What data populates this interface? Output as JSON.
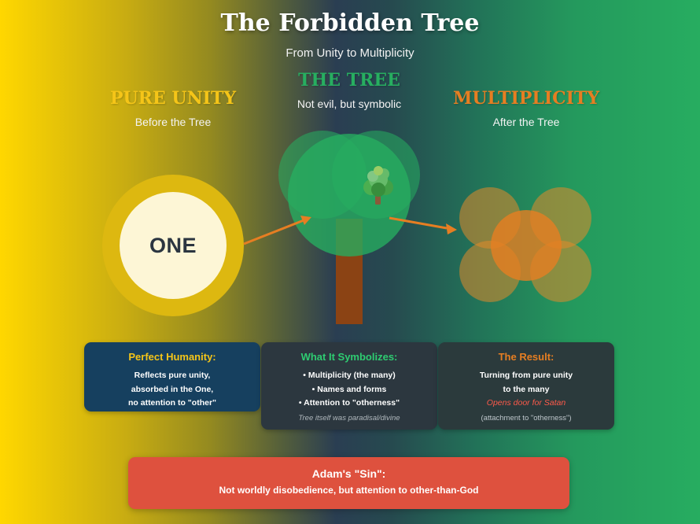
{
  "header": {
    "title": "The Forbidden Tree",
    "subtitle": "From Unity to Multiplicity"
  },
  "columns": {
    "unity": {
      "heading": "PURE UNITY",
      "sub": "Before the Tree",
      "color": "#f5c518"
    },
    "tree": {
      "heading": "THE TREE",
      "sub": "Not evil, but symbolic",
      "color": "#27ae60"
    },
    "multiplicity": {
      "heading": "MULTIPLICITY",
      "sub": "After the Tree",
      "color": "#e67e22"
    }
  },
  "unity_circle": {
    "label": "ONE"
  },
  "icons": {
    "tree": "deciduous-tree-icon"
  },
  "boxes": {
    "humanity": {
      "heading": "Perfect Humanity:",
      "heading_color": "#f5c518",
      "lines": [
        "Reflects pure unity,",
        "absorbed in the One,",
        "no attention to \"other\""
      ]
    },
    "symbolizes": {
      "heading": "What It Symbolizes:",
      "heading_color": "#2ecc71",
      "lines": [
        "• Multiplicity (the many)",
        "• Names and forms",
        "• Attention to \"otherness\""
      ],
      "note": "Tree itself was paradisal/divine"
    },
    "result": {
      "heading": "The Result:",
      "heading_color": "#e67e22",
      "lines": [
        "Turning from pure unity",
        "to the many"
      ],
      "highlight": "Opens door for Satan",
      "note": "(attachment to \"otherness\")"
    }
  },
  "sin": {
    "heading": "Adam's \"Sin\":",
    "text": "Not worldly disobedience, but attention to other-than-God"
  },
  "colors": {
    "arrow": "#e67e22",
    "trunk": "#8b4314",
    "sin_box": "#de513e"
  }
}
